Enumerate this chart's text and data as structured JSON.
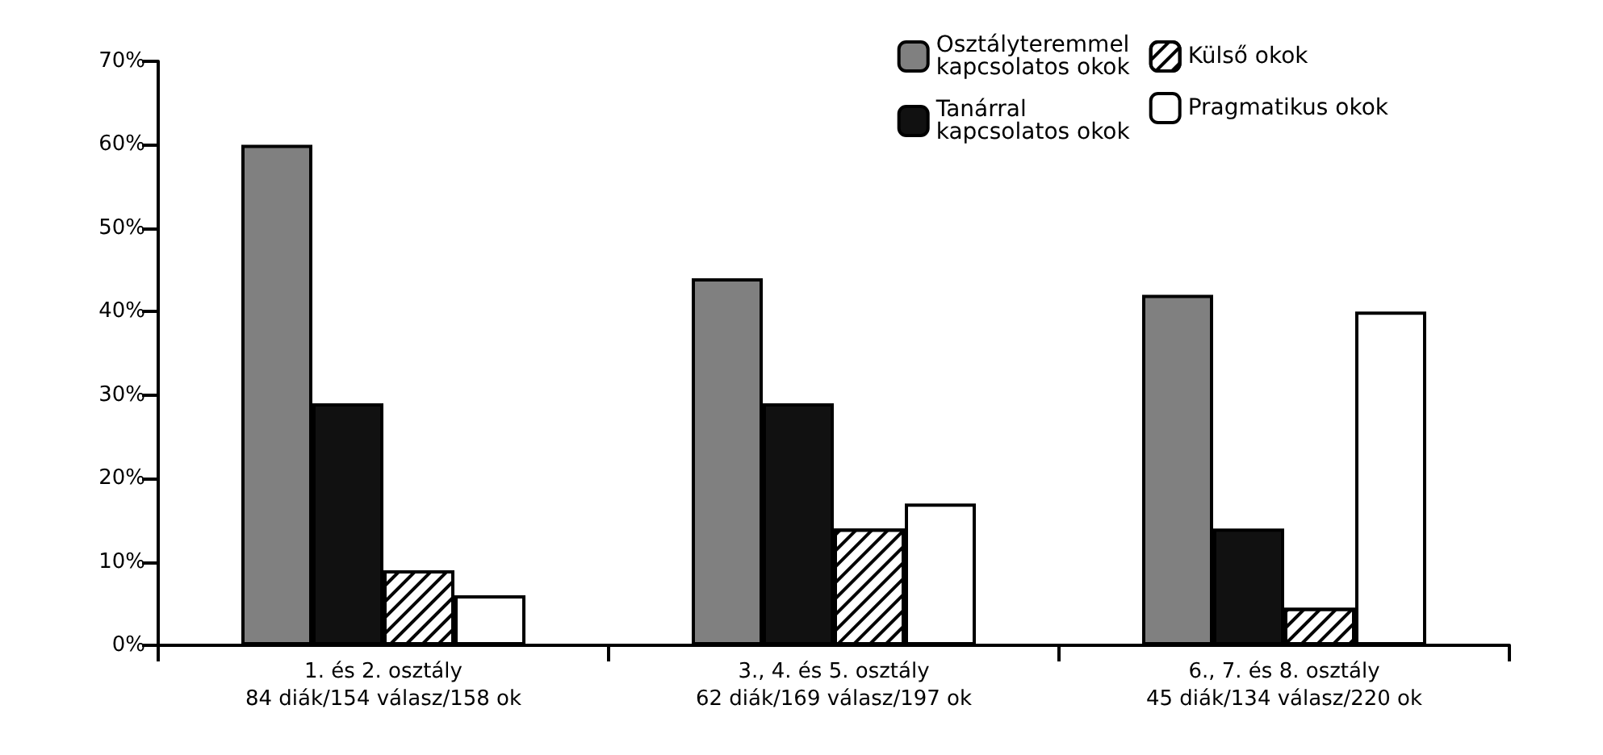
{
  "chart_data": {
    "type": "bar",
    "categories": [
      "1. és 2. osztály\n84 diák/154 válasz/158 ok",
      "3., 4. és 5. osztály\n62 diák/169 válasz/197 ok",
      "6., 7. és 8. osztály\n45 diák/134 válasz/220 ok"
    ],
    "series": [
      {
        "name": "Osztályteremmel\nkapcsolatos okok",
        "color": "#808080",
        "values": [
          60,
          44,
          42
        ]
      },
      {
        "name": "Tanárral\nkapcsolatos okok",
        "color": "#111111",
        "values": [
          29,
          29,
          14
        ]
      },
      {
        "name": "Külső okok",
        "color": "#ffffff",
        "values": [
          9,
          14,
          4.5
        ]
      },
      {
        "name": "Pragmatikus okok",
        "color": "#ffffff",
        "values": [
          6,
          17,
          40
        ]
      }
    ],
    "ylim": [
      0,
      70
    ],
    "yticks": [
      {
        "value": 0,
        "label": "0%"
      },
      {
        "value": 10,
        "label": "10%"
      },
      {
        "value": 20,
        "label": "20%"
      },
      {
        "value": 30,
        "label": "30%"
      },
      {
        "value": 40,
        "label": "40%"
      },
      {
        "value": 50,
        "label": "50%"
      },
      {
        "value": 60,
        "label": "60%"
      },
      {
        "value": 70,
        "label": "70%"
      }
    ],
    "grid": false,
    "legend": "top right"
  }
}
